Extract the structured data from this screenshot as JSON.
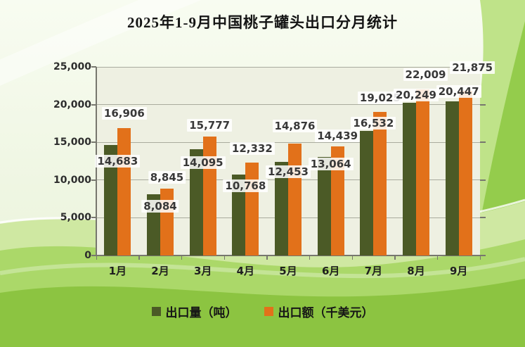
{
  "title": "2025年1-9月中国桃子罐头出口分月统计",
  "chart_data": {
    "type": "bar",
    "title": "2025年1-9月中国桃子罐头出口分月统计",
    "categories": [
      "1月",
      "2月",
      "3月",
      "4月",
      "5月",
      "6月",
      "7月",
      "8月",
      "9月"
    ],
    "series": [
      {
        "name": "出口量（吨）",
        "color": "#4b5a26",
        "values": [
          14683,
          8084,
          14095,
          10768,
          12453,
          13064,
          16532,
          20249,
          20447
        ],
        "labels": [
          "14,683",
          "8,084",
          "14,095",
          "10,768",
          "12,453",
          "13,064",
          "16,532",
          "20,249",
          "20,447"
        ]
      },
      {
        "name": "出口额（千美元）",
        "color": "#e2711a",
        "values": [
          16906,
          8845,
          15777,
          12332,
          14876,
          14439,
          19025,
          22009,
          21875
        ],
        "labels": [
          "16,906",
          "8,845",
          "15,777",
          "12,332",
          "14,876",
          "14,439",
          "19,025",
          "22,009",
          "21,875"
        ]
      }
    ],
    "xlabel": "",
    "ylabel": "",
    "ylim": [
      0,
      25000
    ],
    "ytick_interval": 5000,
    "ytick_labels": [
      "0",
      "5,000",
      "10,000",
      "15,000",
      "20,000",
      "25,000"
    ],
    "grid": true,
    "legend_position": "bottom",
    "plot_background": "#eef0e2"
  },
  "colors": {
    "bar_green": "#4b5a26",
    "bar_orange": "#e2711a",
    "plot_bg": "#eef0e2",
    "gridline": "#a9ab9e",
    "background_greens": [
      "#cfe8a2",
      "#abd869",
      "#8cc441",
      "#bfe389",
      "#94cc4c"
    ]
  }
}
